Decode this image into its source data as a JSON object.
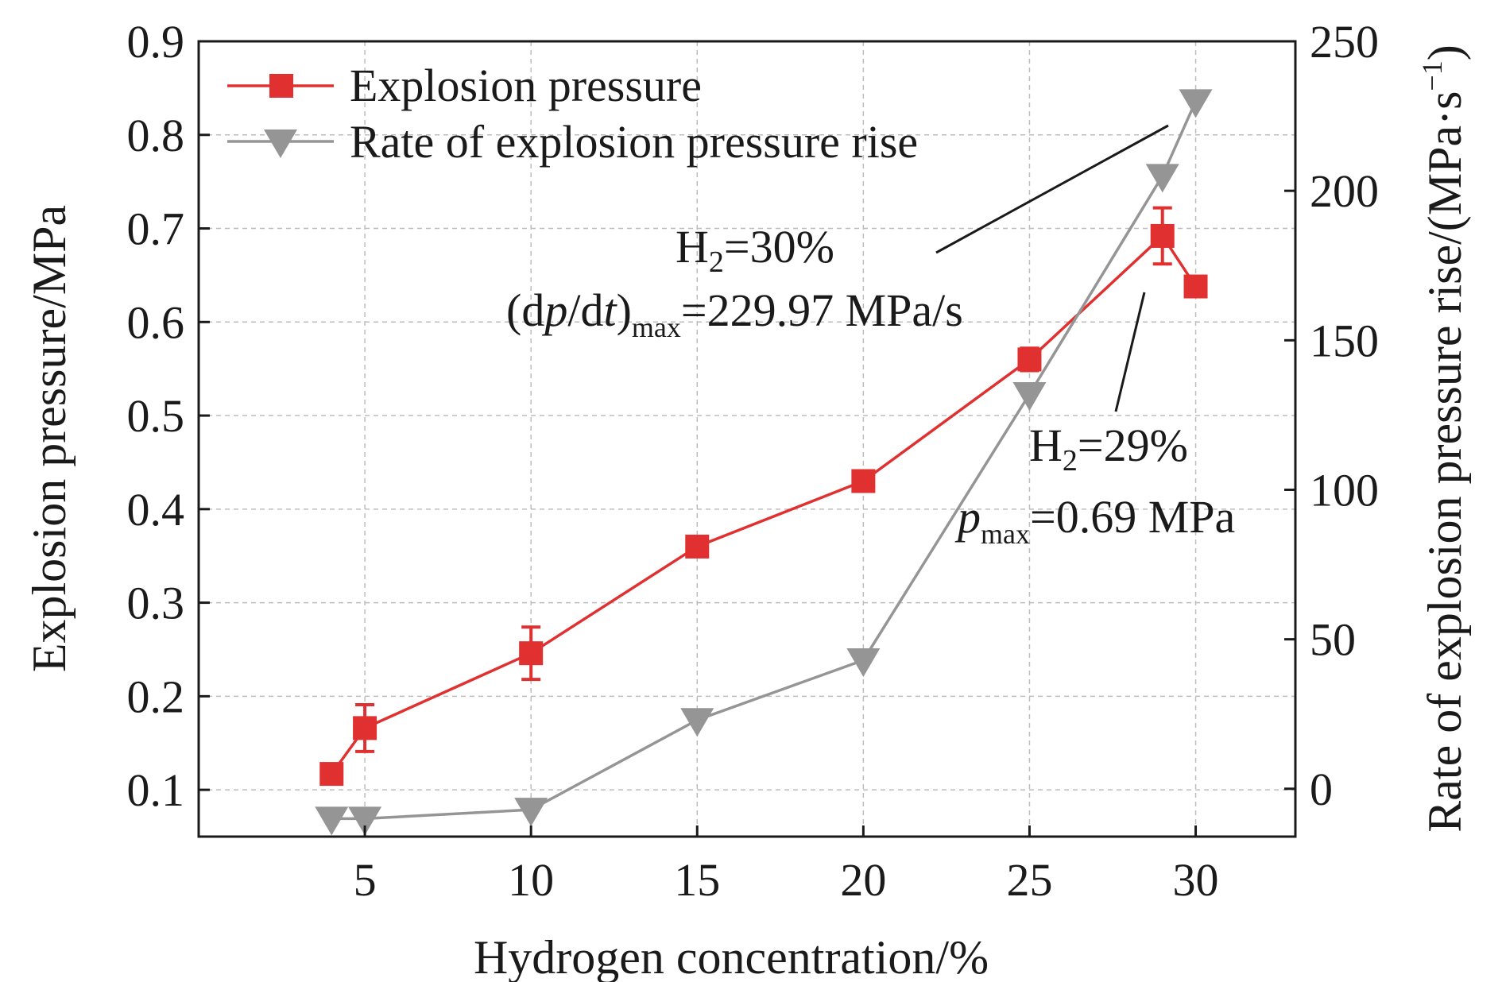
{
  "chart_data": {
    "type": "line",
    "xlabel": "Hydrogen concentration/%",
    "ylabel_left": "Explosion pressure/MPa",
    "ylabel_right": "Rate of explosion pressure rise/(MPa·s",
    "ylabel_right_sup": "−1",
    "ylabel_right_close": ")",
    "xlim": [
      0,
      33
    ],
    "ylim_left": [
      0.05,
      0.9
    ],
    "ylim_right": [
      -16,
      250
    ],
    "xticks": [
      5,
      10,
      15,
      20,
      25,
      30
    ],
    "yticks_left": [
      0.1,
      0.2,
      0.3,
      0.4,
      0.5,
      0.6,
      0.7,
      0.8,
      0.9
    ],
    "yticks_right": [
      0,
      50,
      100,
      150,
      200,
      250
    ],
    "grid": true,
    "legend_position": "top-left",
    "series": [
      {
        "name": "Explosion pressure",
        "axis": "left",
        "marker": "square",
        "color": "#e03030",
        "x": [
          4,
          5,
          10,
          15,
          20,
          25,
          29,
          30
        ],
        "y": [
          0.117,
          0.166,
          0.246,
          0.36,
          0.43,
          0.56,
          0.692,
          0.638
        ],
        "error": [
          0.008,
          0.025,
          0.028,
          0.01,
          0.01,
          0.012,
          0.03,
          0.01
        ]
      },
      {
        "name": "Rate of explosion pressure rise",
        "axis": "right",
        "marker": "triangle-down",
        "color": "#959595",
        "x": [
          4,
          5,
          10,
          15,
          20,
          25,
          29,
          30
        ],
        "y": [
          -10,
          -10,
          -7,
          23,
          43,
          132,
          205,
          229.97
        ]
      }
    ],
    "annotations": [
      {
        "id": "rate-max",
        "line1": {
          "base": "H",
          "sub": "2",
          "rest": "=30%"
        },
        "line2": {
          "open": "(d",
          "ital1": "p",
          "mid": "/d",
          "ital2": "t",
          "close": ")",
          "sub": "max",
          "rest": "=229.97 MPa/s"
        },
        "points_to": {
          "x": 30,
          "y": 229.97,
          "axis": "right"
        }
      },
      {
        "id": "pressure-max",
        "line1": {
          "base": "H",
          "sub": "2",
          "rest": "=29%"
        },
        "line2": {
          "ital": "p",
          "sub": "max",
          "rest": "=0.69 MPa"
        },
        "points_to": {
          "x": 29,
          "y": 0.692,
          "axis": "left"
        }
      }
    ]
  }
}
